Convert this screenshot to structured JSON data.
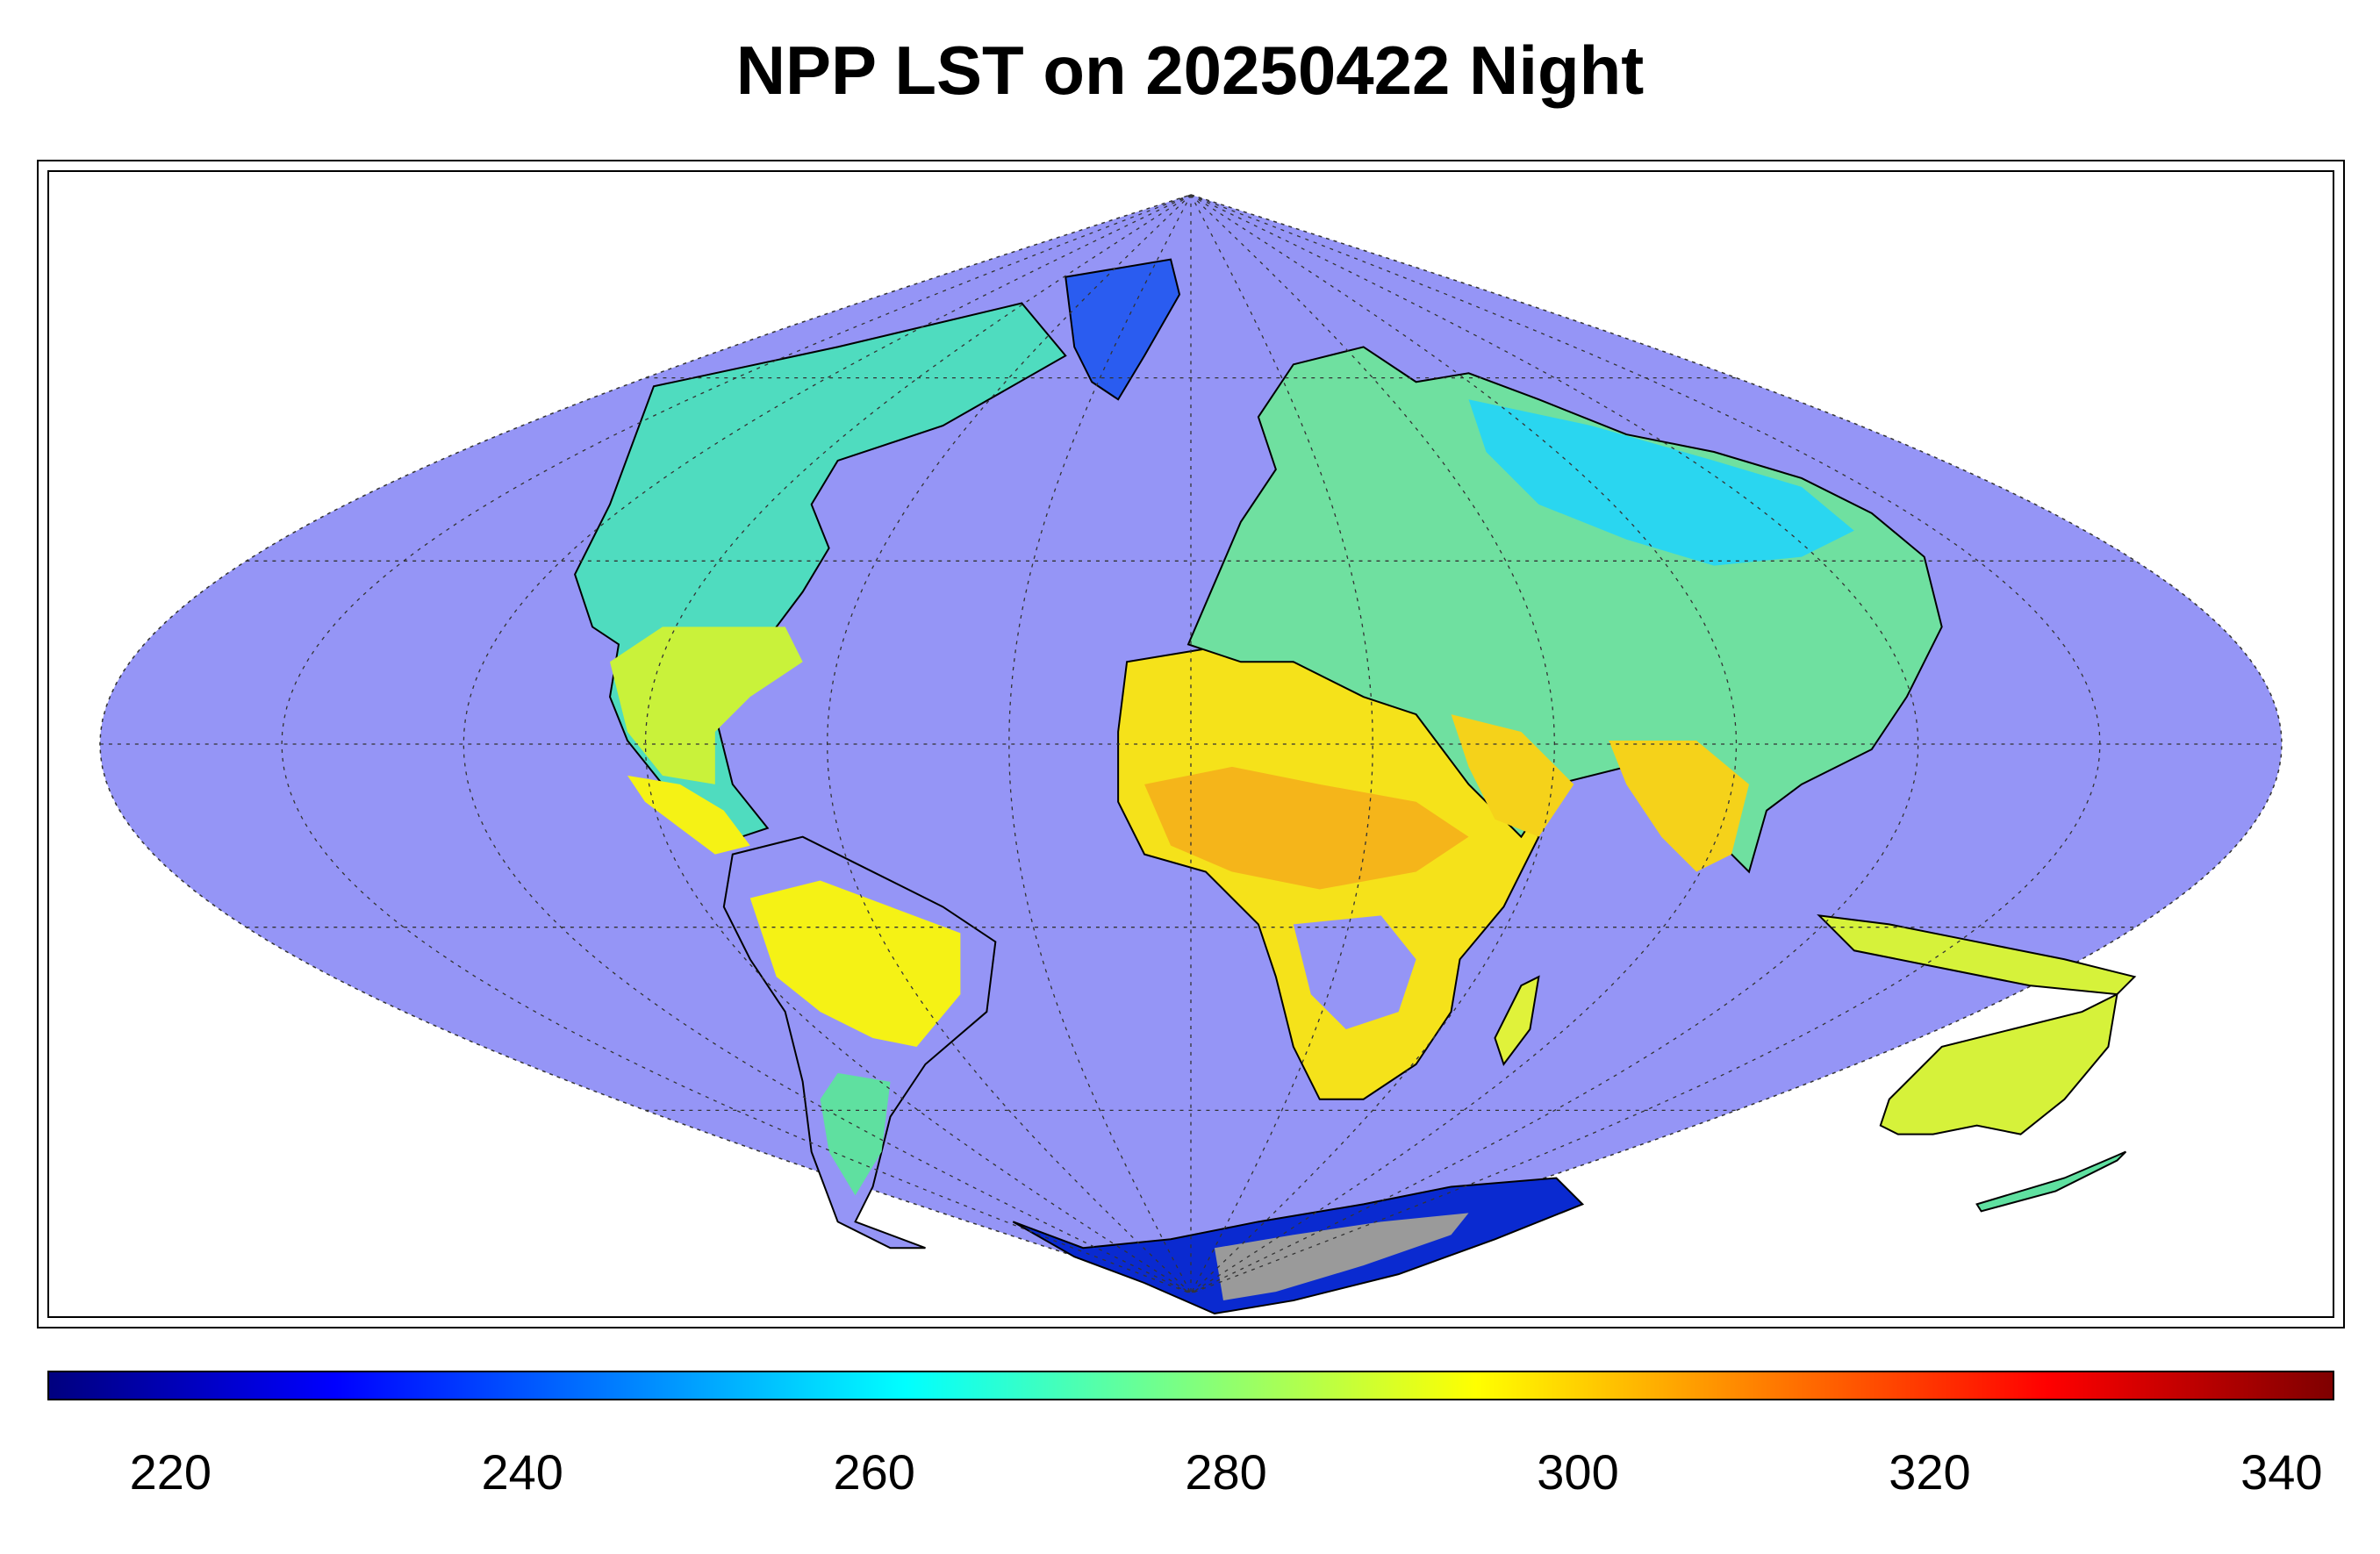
{
  "title": "NPP LST on 20250422 Night",
  "map": {
    "projection": "sinusoidal",
    "ocean_color": "#9595f6",
    "missing_color": "#9a9a9a",
    "graticule": "dotted",
    "palette": "jet"
  },
  "colorbar": {
    "min": 213,
    "max": 343,
    "colormap": [
      "#00007f",
      "#0000ff",
      "#007fff",
      "#00ffff",
      "#7fff7f",
      "#ffff00",
      "#ff7f00",
      "#ff0000",
      "#7f0000"
    ],
    "ticks": [
      "220",
      "240",
      "260",
      "280",
      "300",
      "320",
      "340"
    ],
    "tick_values": [
      220,
      240,
      260,
      280,
      300,
      320,
      340
    ]
  }
}
